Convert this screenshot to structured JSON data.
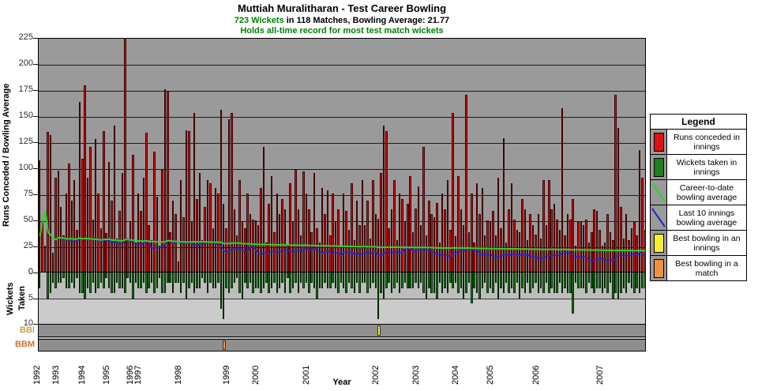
{
  "header": {
    "title": "Muttiah Muralitharan - Test Career Bowling",
    "subtitle_highlight": "723 Wickets",
    "subtitle_rest": " in 118 Matches, Bowling Average: 21.77",
    "note": "Holds all-time record for most test match wickets"
  },
  "axes": {
    "left_title": "Runs Conceded / Bowling Average",
    "left_ticks": [
      0,
      25,
      50,
      75,
      100,
      125,
      150,
      175,
      200,
      225
    ],
    "wickets_title": "Wickets Taken",
    "wickets_ticks": [
      0,
      5,
      10
    ],
    "bbi_label": "BBI",
    "bbm_label": "BBM",
    "x_title": "Year"
  },
  "legend": {
    "title": "Legend",
    "items": [
      {
        "swatch": "rect",
        "color": "#dd1111",
        "label": "Runs conceded in innings"
      },
      {
        "swatch": "rect",
        "color": "#1e7d1e",
        "label": "Wickets taken in innings"
      },
      {
        "swatch": "line",
        "color": "#2ad42a",
        "label": "Career-to-date bowling average"
      },
      {
        "swatch": "line",
        "color": "#2525cf",
        "label": "Last 10 innings bowling average"
      },
      {
        "swatch": "rect",
        "color": "#f5ef2e",
        "label": "Best bowling in an innings"
      },
      {
        "swatch": "rect",
        "color": "#f0913f",
        "label": "Best bowling in a match"
      }
    ]
  },
  "chart_data": {
    "type": "bar",
    "title": "Muttiah Muralitharan - Test Career Bowling",
    "xlabel": "Year",
    "ylabel": "Runs Conceded / Bowling Average",
    "y2label": "Wickets Taken",
    "ylim_runs": [
      0,
      225
    ],
    "ylim_wickets": [
      0,
      10
    ],
    "grid": "horizontal",
    "legend_position": "right",
    "totals": {
      "wickets": 723,
      "matches": 118,
      "bowling_average": 21.77
    },
    "years": [
      {
        "label": "1992",
        "start_index": 0
      },
      {
        "label": "1993",
        "start_index": 7
      },
      {
        "label": "1994",
        "start_index": 17
      },
      {
        "label": "1995",
        "start_index": 26
      },
      {
        "label": "1996",
        "start_index": 35
      },
      {
        "label": "1997",
        "start_index": 38
      },
      {
        "label": "1998",
        "start_index": 53
      },
      {
        "label": "1999",
        "start_index": 71
      },
      {
        "label": "2000",
        "start_index": 82
      },
      {
        "label": "2001",
        "start_index": 101
      },
      {
        "label": "2002",
        "start_index": 127
      },
      {
        "label": "2003",
        "start_index": 142
      },
      {
        "label": "2004",
        "start_index": 157
      },
      {
        "label": "2005",
        "start_index": 170
      },
      {
        "label": "2006",
        "start_index": 187
      },
      {
        "label": "2007",
        "start_index": 211
      }
    ],
    "innings_runs_wickets": [
      [
        107,
        3
      ],
      [
        48,
        0
      ],
      [
        25,
        0
      ],
      [
        134,
        5
      ],
      [
        131,
        4
      ],
      [
        18,
        2
      ],
      [
        90,
        3
      ],
      [
        97,
        2
      ],
      [
        62,
        2
      ],
      [
        35,
        1
      ],
      [
        75,
        3
      ],
      [
        104,
        3
      ],
      [
        68,
        2
      ],
      [
        88,
        3
      ],
      [
        40,
        1
      ],
      [
        163,
        4
      ],
      [
        108,
        4
      ],
      [
        179,
        5
      ],
      [
        90,
        3
      ],
      [
        120,
        4
      ],
      [
        50,
        2
      ],
      [
        127,
        4
      ],
      [
        75,
        3
      ],
      [
        42,
        2
      ],
      [
        135,
        3
      ],
      [
        37,
        1
      ],
      [
        105,
        3
      ],
      [
        68,
        4
      ],
      [
        140,
        4
      ],
      [
        32,
        2
      ],
      [
        58,
        3
      ],
      [
        95,
        3
      ],
      [
        224,
        4
      ],
      [
        30,
        1
      ],
      [
        48,
        2
      ],
      [
        112,
        5
      ],
      [
        28,
        2
      ],
      [
        75,
        3
      ],
      [
        58,
        3
      ],
      [
        90,
        2
      ],
      [
        133,
        4
      ],
      [
        45,
        3
      ],
      [
        30,
        2
      ],
      [
        115,
        4
      ],
      [
        72,
        3
      ],
      [
        25,
        1
      ],
      [
        98,
        4
      ],
      [
        175,
        4
      ],
      [
        173,
        2
      ],
      [
        38,
        2
      ],
      [
        68,
        4
      ],
      [
        55,
        2
      ],
      [
        10,
        2
      ],
      [
        88,
        4
      ],
      [
        52,
        2
      ],
      [
        136,
        5
      ],
      [
        135,
        3
      ],
      [
        48,
        2
      ],
      [
        152,
        4
      ],
      [
        70,
        3
      ],
      [
        95,
        3
      ],
      [
        30,
        1
      ],
      [
        62,
        2
      ],
      [
        88,
        4
      ],
      [
        85,
        2
      ],
      [
        42,
        3
      ],
      [
        80,
        3
      ],
      [
        75,
        2
      ],
      [
        155,
        7
      ],
      [
        65,
        9
      ],
      [
        42,
        3
      ],
      [
        146,
        4
      ],
      [
        152,
        3
      ],
      [
        60,
        2
      ],
      [
        35,
        1
      ],
      [
        88,
        4
      ],
      [
        48,
        5
      ],
      [
        42,
        2
      ],
      [
        75,
        3
      ],
      [
        55,
        2
      ],
      [
        50,
        4
      ],
      [
        49,
        3
      ],
      [
        45,
        3
      ],
      [
        80,
        4
      ],
      [
        120,
        3
      ],
      [
        28,
        2
      ],
      [
        65,
        4
      ],
      [
        92,
        3
      ],
      [
        38,
        2
      ],
      [
        75,
        4
      ],
      [
        55,
        3
      ],
      [
        70,
        2
      ],
      [
        60,
        4
      ],
      [
        25,
        1
      ],
      [
        85,
        4
      ],
      [
        48,
        3
      ],
      [
        98,
        2
      ],
      [
        60,
        4
      ],
      [
        35,
        2
      ],
      [
        96,
        3
      ],
      [
        75,
        2
      ],
      [
        60,
        4
      ],
      [
        38,
        2
      ],
      [
        95,
        3
      ],
      [
        42,
        5
      ],
      [
        28,
        3
      ],
      [
        80,
        3
      ],
      [
        55,
        2
      ],
      [
        78,
        3
      ],
      [
        35,
        3
      ],
      [
        75,
        2
      ],
      [
        48,
        3
      ],
      [
        60,
        4
      ],
      [
        25,
        2
      ],
      [
        75,
        3
      ],
      [
        58,
        4
      ],
      [
        40,
        2
      ],
      [
        85,
        3
      ],
      [
        30,
        4
      ],
      [
        68,
        2
      ],
      [
        45,
        4
      ],
      [
        88,
        2
      ],
      [
        45,
        2
      ],
      [
        68,
        4
      ],
      [
        32,
        3
      ],
      [
        88,
        2
      ],
      [
        55,
        3
      ],
      [
        51,
        9
      ],
      [
        95,
        4
      ],
      [
        140,
        5
      ],
      [
        135,
        3
      ],
      [
        42,
        2
      ],
      [
        60,
        4
      ],
      [
        88,
        3
      ],
      [
        30,
        2
      ],
      [
        75,
        4
      ],
      [
        70,
        3
      ],
      [
        48,
        2
      ],
      [
        65,
        3
      ],
      [
        92,
        3
      ],
      [
        38,
        3
      ],
      [
        61,
        2
      ],
      [
        82,
        3
      ],
      [
        45,
        2
      ],
      [
        120,
        4
      ],
      [
        35,
        5
      ],
      [
        68,
        3
      ],
      [
        55,
        4
      ],
      [
        52,
        4
      ],
      [
        66,
        5
      ],
      [
        28,
        2
      ],
      [
        75,
        4
      ],
      [
        60,
        3
      ],
      [
        88,
        4
      ],
      [
        40,
        2
      ],
      [
        152,
        3
      ],
      [
        34,
        2
      ],
      [
        92,
        4
      ],
      [
        60,
        3
      ],
      [
        45,
        5
      ],
      [
        170,
        4
      ],
      [
        38,
        2
      ],
      [
        75,
        6
      ],
      [
        28,
        3
      ],
      [
        85,
        4
      ],
      [
        55,
        5
      ],
      [
        80,
        3
      ],
      [
        35,
        2
      ],
      [
        49,
        4
      ],
      [
        48,
        3
      ],
      [
        58,
        4
      ],
      [
        35,
        2
      ],
      [
        90,
        5
      ],
      [
        42,
        3
      ],
      [
        128,
        4
      ],
      [
        28,
        2
      ],
      [
        60,
        4
      ],
      [
        85,
        3
      ],
      [
        50,
        4
      ],
      [
        40,
        2
      ],
      [
        38,
        5
      ],
      [
        70,
        3
      ],
      [
        60,
        4
      ],
      [
        30,
        2
      ],
      [
        55,
        4
      ],
      [
        45,
        3
      ],
      [
        36,
        2
      ],
      [
        55,
        4
      ],
      [
        32,
        3
      ],
      [
        88,
        4
      ],
      [
        45,
        2
      ],
      [
        88,
        4
      ],
      [
        60,
        3
      ],
      [
        65,
        4
      ],
      [
        50,
        4
      ],
      [
        40,
        2
      ],
      [
        157,
        4
      ],
      [
        35,
        3
      ],
      [
        55,
        4
      ],
      [
        50,
        4
      ],
      [
        70,
        8
      ],
      [
        25,
        2
      ],
      [
        48,
        3
      ],
      [
        48,
        3
      ],
      [
        45,
        3
      ],
      [
        50,
        4
      ],
      [
        28,
        2
      ],
      [
        38,
        3
      ],
      [
        60,
        4
      ],
      [
        58,
        3
      ],
      [
        40,
        3
      ],
      [
        25,
        4
      ],
      [
        28,
        3
      ],
      [
        55,
        4
      ],
      [
        38,
        2
      ],
      [
        30,
        5
      ],
      [
        170,
        4
      ],
      [
        138,
        5
      ],
      [
        62,
        4
      ],
      [
        32,
        3
      ],
      [
        55,
        4
      ],
      [
        30,
        2
      ],
      [
        42,
        3
      ],
      [
        48,
        4
      ],
      [
        35,
        3
      ],
      [
        117,
        4
      ],
      [
        90,
        3
      ],
      [
        40,
        3
      ]
    ],
    "derived_lines": {
      "career_avg": "cumulative runs conceded divided by cumulative wickets (green line)",
      "last10_avg": "rolling 10-innings runs divided by rolling 10-innings wickets (blue line)"
    },
    "bbi": {
      "index": 127,
      "color": "#f5ef2e"
    },
    "bbm": {
      "index": 69,
      "color": "#f0913f"
    }
  },
  "colors": {
    "plot_bg": "#9a9a9a",
    "runs_bar": "#dd1111",
    "wickets_bar": "#1e7d1e",
    "career_avg_line": "#2ad42a",
    "last10_avg_line": "#2525cf",
    "bbi_mark": "#f5ef2e",
    "bbm_mark": "#f0913f",
    "subtitle_green": "#008000"
  }
}
